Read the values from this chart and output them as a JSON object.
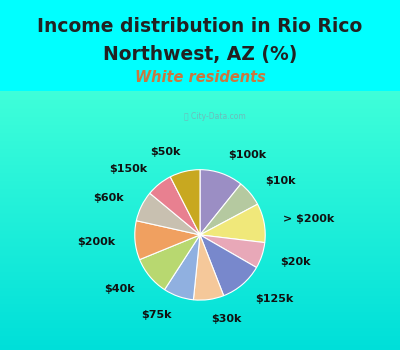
{
  "title_line1": "Income distribution in Rio Rico",
  "title_line2": "Northwest, AZ (%)",
  "subtitle": "White residents",
  "bg_color": "#00FFFF",
  "chart_bg_top": "#e8f8f8",
  "chart_bg_bot": "#d0eed8",
  "labels": [
    "$100k",
    "$10k",
    "> $200k",
    "$20k",
    "$125k",
    "$30k",
    "$75k",
    "$40k",
    "$200k",
    "$60k",
    "$150k",
    "$50k"
  ],
  "sizes": [
    10,
    6,
    9,
    6,
    10,
    7,
    7,
    9,
    9,
    7,
    6,
    7
  ],
  "colors": [
    "#9b8ec4",
    "#b5c9a0",
    "#f0e87a",
    "#e8a8b8",
    "#7888cc",
    "#f5c89a",
    "#90b0e0",
    "#b8d870",
    "#f0a060",
    "#c8c0b0",
    "#e88090",
    "#c8a820"
  ],
  "label_fontsize": 8.0,
  "title_fontsize": 13.5,
  "subtitle_fontsize": 10.5,
  "title_color": "#222222",
  "subtitle_color": "#c87840",
  "watermark": "ⓘ City-Data.com"
}
